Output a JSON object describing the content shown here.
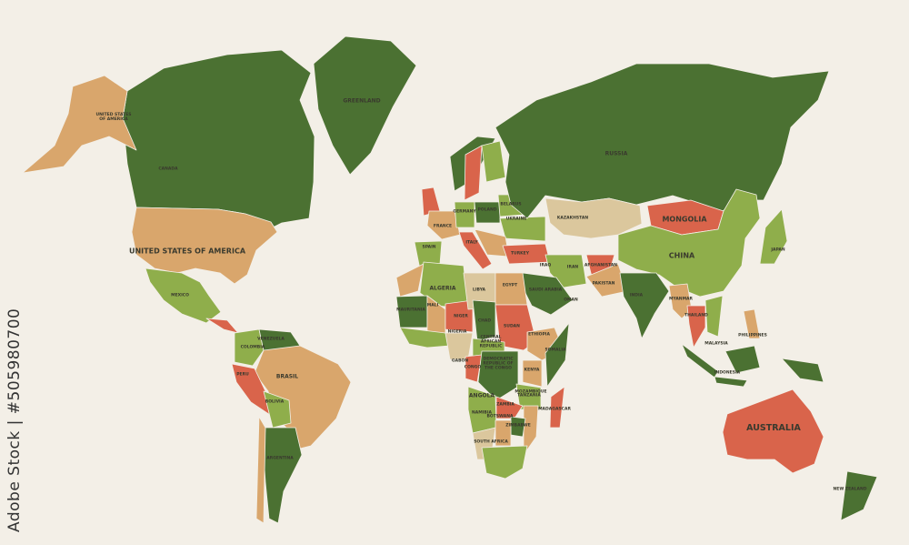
{
  "palette": {
    "background": "#f3efe7",
    "dark_green": "#4b7132",
    "light_green": "#8fae4b",
    "tan": "#d9a66c",
    "light_tan": "#dbc79d",
    "red": "#d9644b"
  },
  "watermark": "Adobe Stock | #505980700",
  "labels": {
    "greenland": "GREENLAND",
    "alaska": "UNITED STATES OF AMERICA",
    "canada": "CANADA",
    "usa": "UNITED STATES OF AMERICA",
    "mexico": "MEXICO",
    "venezuela": "VENEZUELA",
    "colombia": "COLOMBIA",
    "peru": "PERU",
    "brasil": "BRASIL",
    "bolivia": "BOLIVIA",
    "argentina": "ARGENTINA",
    "russia": "RUSSIA",
    "kazakhstan": "KAZAKHSTAN",
    "mongolia": "MONGOLIA",
    "china": "CHINA",
    "india": "INDIA",
    "pakistan": "PAKISTAN",
    "afghanistan": "AFGHANISTAN",
    "iran": "IRAN",
    "iraq": "IRAQ",
    "saudi": "SAUDI ARABIA",
    "oman": "OMAN",
    "turkey": "TURKEY",
    "japan": "JAPAN",
    "myanmar": "MYANMAR",
    "thailand": "THAILAND",
    "philippines": "PHILIPPINES",
    "malaysia": "MALAYSIA",
    "indonesia": "INDONESIA",
    "australia": "AUSTRALIA",
    "new_zealand": "NEW ZEALAND",
    "spain": "SPAIN",
    "france": "FRANCE",
    "germany": "GERMANY",
    "poland": "POLAND",
    "belarus": "BELARUS",
    "ukraine": "UKRAINE",
    "italy": "ITALY",
    "algeria": "ALGERIA",
    "libya": "LIBYA",
    "egypt": "EGYPT",
    "mali": "MALI",
    "niger": "NIGER",
    "chad": "CHAD",
    "sudan": "SUDAN",
    "ethiopia": "ETHIOPIA",
    "somalia": "SOMALIA",
    "mauritania": "MAURITANIA",
    "nigeria": "NIGERIA",
    "car": "CENTRAL AFRICAN REPUBLIC",
    "drc": "DEMOCRATIC REPUBLIC OF THE CONGO",
    "congo": "CONGO",
    "gabon": "GABON",
    "kenya": "KENYA",
    "tanzania": "TANZANIA",
    "angola": "ANGOLA",
    "zambia": "ZAMBIA",
    "zimbabwe": "ZIMBABWE",
    "mozambique": "MOZAMBIQUE",
    "namibia": "NAMIBIA",
    "botswana": "BOTSWANA",
    "south_africa": "SOUTH AFRICA",
    "madagascar": "MADAGASCAR"
  }
}
